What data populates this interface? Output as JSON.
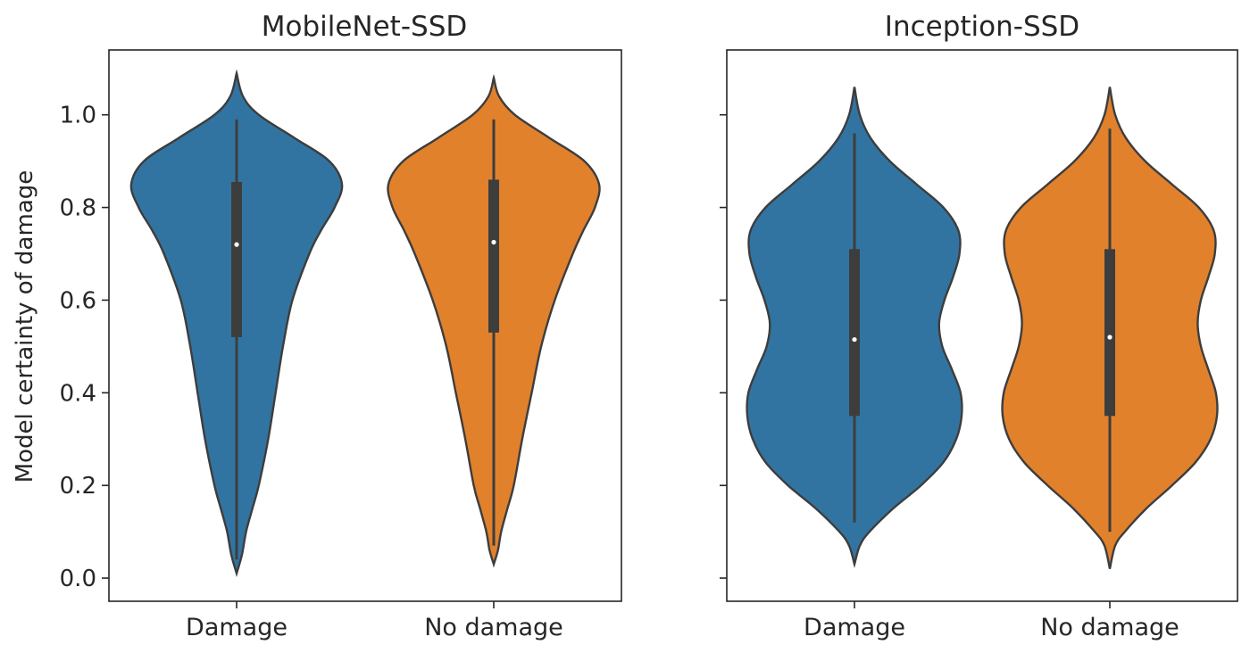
{
  "chart_data": [
    {
      "type": "violin",
      "title": "MobileNet-SSD",
      "ylabel": "Model certainty of damage",
      "xlabel": "",
      "ylim": [
        -0.05,
        1.14
      ],
      "yticks": [
        0.0,
        0.2,
        0.4,
        0.6,
        0.8,
        1.0
      ],
      "ytick_labels": [
        "0.0",
        "0.2",
        "0.4",
        "0.6",
        "0.8",
        "1.0"
      ],
      "grid": false,
      "categories": [
        "Damage",
        "No damage"
      ],
      "violins": [
        {
          "category": "Damage",
          "color": "#3274a1",
          "min": 0.01,
          "whisker_low": 0.04,
          "q1": 0.52,
          "median": 0.72,
          "q3": 0.855,
          "whisker_high": 0.99,
          "max": 1.09,
          "density": [
            [
              0.01,
              0.0
            ],
            [
              0.05,
              0.05
            ],
            [
              0.1,
              0.09
            ],
            [
              0.15,
              0.15
            ],
            [
              0.2,
              0.21
            ],
            [
              0.3,
              0.3
            ],
            [
              0.4,
              0.37
            ],
            [
              0.5,
              0.44
            ],
            [
              0.6,
              0.53
            ],
            [
              0.7,
              0.69
            ],
            [
              0.75,
              0.8
            ],
            [
              0.8,
              0.93
            ],
            [
              0.85,
              1.0
            ],
            [
              0.9,
              0.88
            ],
            [
              0.95,
              0.55
            ],
            [
              1.0,
              0.21
            ],
            [
              1.04,
              0.06
            ],
            [
              1.09,
              0.0
            ]
          ]
        },
        {
          "category": "No damage",
          "color": "#e1812c",
          "min": 0.03,
          "whisker_low": 0.07,
          "q1": 0.53,
          "median": 0.725,
          "q3": 0.86,
          "whisker_high": 0.99,
          "max": 1.08,
          "density": [
            [
              0.03,
              0.0
            ],
            [
              0.06,
              0.04
            ],
            [
              0.1,
              0.07
            ],
            [
              0.15,
              0.13
            ],
            [
              0.2,
              0.19
            ],
            [
              0.3,
              0.27
            ],
            [
              0.4,
              0.36
            ],
            [
              0.5,
              0.45
            ],
            [
              0.6,
              0.58
            ],
            [
              0.7,
              0.75
            ],
            [
              0.75,
              0.85
            ],
            [
              0.8,
              0.96
            ],
            [
              0.85,
              1.0
            ],
            [
              0.9,
              0.86
            ],
            [
              0.95,
              0.53
            ],
            [
              1.0,
              0.2
            ],
            [
              1.04,
              0.05
            ],
            [
              1.08,
              0.0
            ]
          ]
        }
      ]
    },
    {
      "type": "violin",
      "title": "Inception-SSD",
      "ylabel": "",
      "xlabel": "",
      "ylim": [
        -0.05,
        1.14
      ],
      "yticks": [
        0.0,
        0.2,
        0.4,
        0.6,
        0.8,
        1.0
      ],
      "ytick_labels": [],
      "grid": false,
      "categories": [
        "Damage",
        "No damage"
      ],
      "violins": [
        {
          "category": "Damage",
          "color": "#3274a1",
          "min": 0.03,
          "whisker_low": 0.12,
          "q1": 0.35,
          "median": 0.515,
          "q3": 0.71,
          "whisker_high": 0.96,
          "max": 1.06,
          "density": [
            [
              0.03,
              0.0
            ],
            [
              0.07,
              0.05
            ],
            [
              0.1,
              0.14
            ],
            [
              0.15,
              0.36
            ],
            [
              0.2,
              0.62
            ],
            [
              0.25,
              0.83
            ],
            [
              0.3,
              0.95
            ],
            [
              0.35,
              1.0
            ],
            [
              0.4,
              0.99
            ],
            [
              0.45,
              0.91
            ],
            [
              0.5,
              0.82
            ],
            [
              0.55,
              0.79
            ],
            [
              0.6,
              0.84
            ],
            [
              0.65,
              0.92
            ],
            [
              0.7,
              0.98
            ],
            [
              0.75,
              0.97
            ],
            [
              0.8,
              0.83
            ],
            [
              0.85,
              0.58
            ],
            [
              0.9,
              0.33
            ],
            [
              0.95,
              0.15
            ],
            [
              1.0,
              0.05
            ],
            [
              1.06,
              0.0
            ]
          ]
        },
        {
          "category": "No damage",
          "color": "#e1812c",
          "min": 0.02,
          "whisker_low": 0.1,
          "q1": 0.35,
          "median": 0.52,
          "q3": 0.71,
          "whisker_high": 0.97,
          "max": 1.06,
          "density": [
            [
              0.02,
              0.0
            ],
            [
              0.07,
              0.05
            ],
            [
              0.1,
              0.14
            ],
            [
              0.15,
              0.34
            ],
            [
              0.2,
              0.58
            ],
            [
              0.25,
              0.8
            ],
            [
              0.3,
              0.94
            ],
            [
              0.35,
              1.0
            ],
            [
              0.4,
              0.99
            ],
            [
              0.45,
              0.92
            ],
            [
              0.5,
              0.85
            ],
            [
              0.55,
              0.82
            ],
            [
              0.6,
              0.85
            ],
            [
              0.65,
              0.92
            ],
            [
              0.7,
              0.98
            ],
            [
              0.75,
              0.97
            ],
            [
              0.8,
              0.83
            ],
            [
              0.85,
              0.58
            ],
            [
              0.9,
              0.33
            ],
            [
              0.95,
              0.15
            ],
            [
              1.0,
              0.05
            ],
            [
              1.06,
              0.0
            ]
          ]
        }
      ]
    }
  ]
}
